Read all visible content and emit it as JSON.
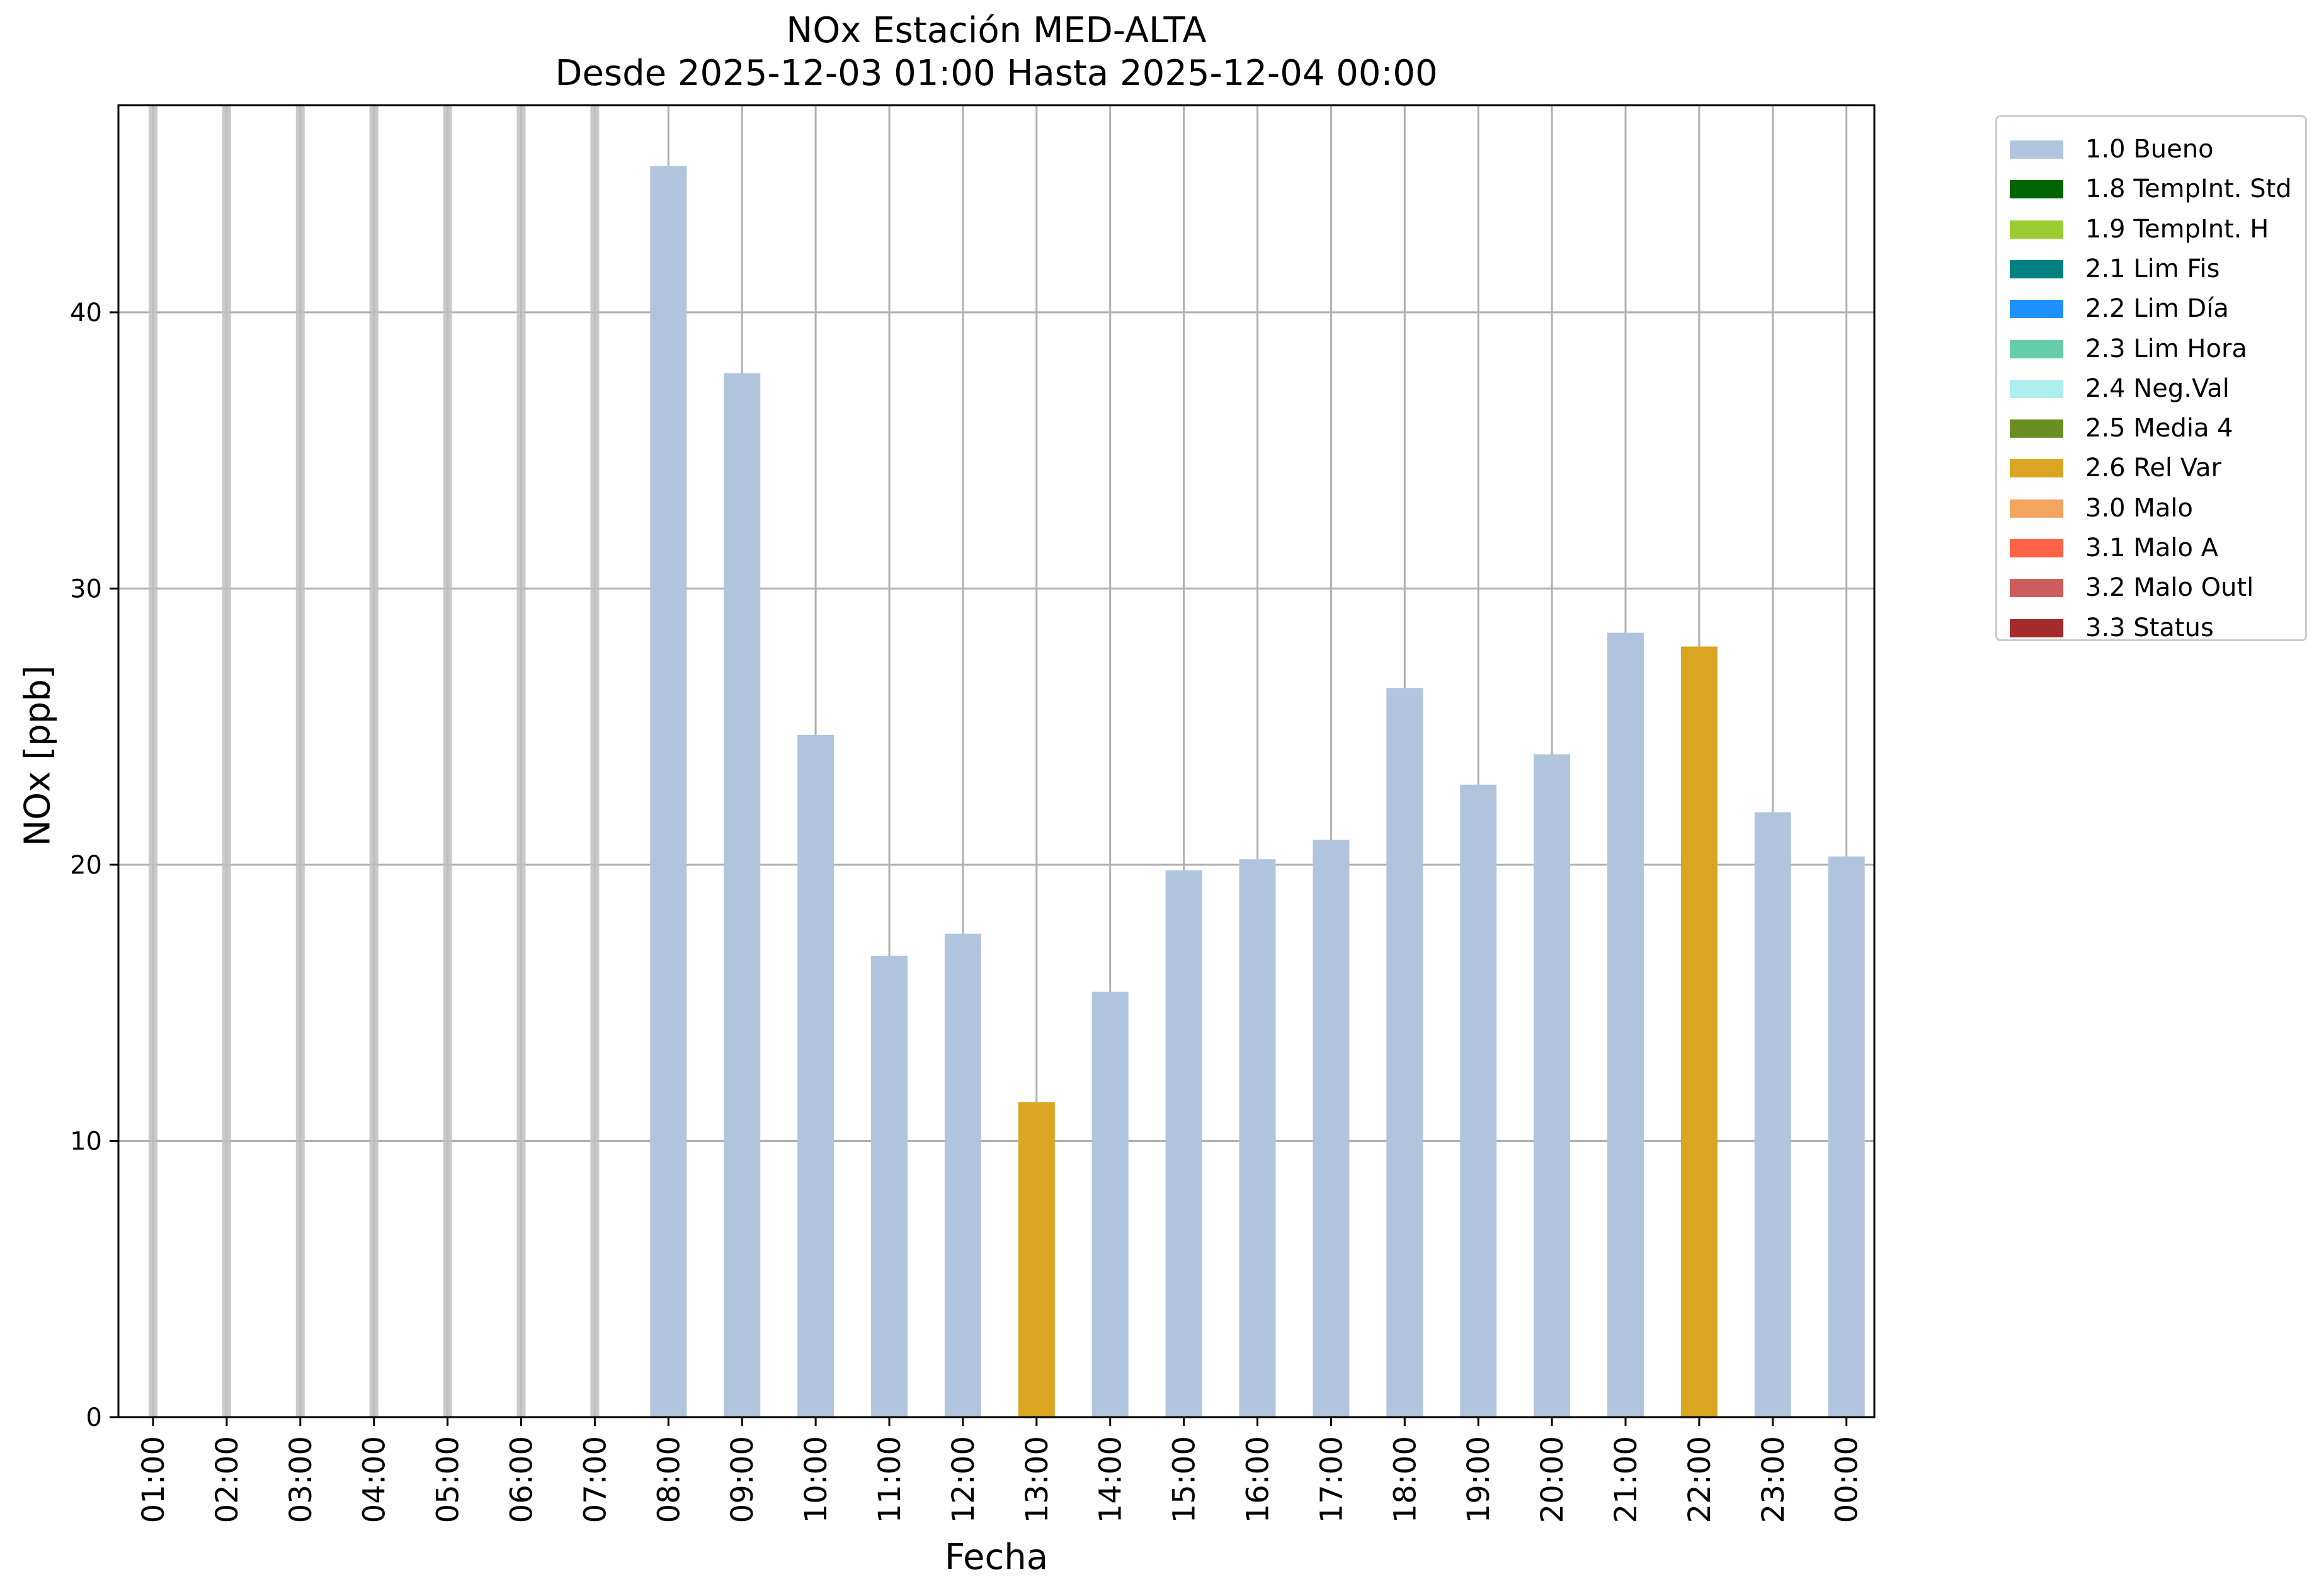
{
  "chart_data": {
    "type": "bar",
    "title": "NOx Estación MED-ALTA",
    "subtitle": "Desde 2025-12-03 01:00 Hasta 2025-12-04 00:00",
    "xlabel": "Fecha",
    "ylabel": "NOx [ppb]",
    "ylim": [
      0,
      47.5
    ],
    "yticks": [
      0,
      10,
      20,
      30,
      40
    ],
    "grid": true,
    "legend_position": "outside top-right",
    "categories": [
      "01:00",
      "02:00",
      "03:00",
      "04:00",
      "05:00",
      "06:00",
      "07:00",
      "08:00",
      "09:00",
      "10:00",
      "11:00",
      "12:00",
      "13:00",
      "14:00",
      "15:00",
      "16:00",
      "17:00",
      "18:00",
      "19:00",
      "20:00",
      "21:00",
      "22:00",
      "23:00",
      "00:00"
    ],
    "values": [
      null,
      null,
      null,
      null,
      null,
      null,
      null,
      45.3,
      37.8,
      24.7,
      16.7,
      17.5,
      11.4,
      15.4,
      19.8,
      20.2,
      20.9,
      26.4,
      22.9,
      24.0,
      28.4,
      27.9,
      21.9,
      20.3
    ],
    "flags": [
      null,
      null,
      null,
      null,
      null,
      null,
      null,
      "1.0 Bueno",
      "1.0 Bueno",
      "1.0 Bueno",
      "1.0 Bueno",
      "1.0 Bueno",
      "2.6 Rel Var",
      "1.0 Bueno",
      "1.0 Bueno",
      "1.0 Bueno",
      "1.0 Bueno",
      "1.0 Bueno",
      "1.0 Bueno",
      "1.0 Bueno",
      "1.0 Bueno",
      "2.6 Rel Var",
      "1.0 Bueno",
      "1.0 Bueno"
    ],
    "legend": [
      {
        "label": "1.0 Bueno",
        "color": "#b0c4de"
      },
      {
        "label": "1.8 TempInt. Std",
        "color": "#006400"
      },
      {
        "label": "1.9 TempInt. H",
        "color": "#9acd32"
      },
      {
        "label": "2.1 Lim Fis",
        "color": "#008080"
      },
      {
        "label": "2.2 Lim Día",
        "color": "#1e90ff"
      },
      {
        "label": "2.3 Lim Hora",
        "color": "#66cdaa"
      },
      {
        "label": "2.4 Neg.Val",
        "color": "#afeeee"
      },
      {
        "label": "2.5 Media 4",
        "color": "#6b8e23"
      },
      {
        "label": "2.6 Rel Var",
        "color": "#daa520"
      },
      {
        "label": "3.0 Malo",
        "color": "#f4a460"
      },
      {
        "label": "3.1 Malo A",
        "color": "#ff6347"
      },
      {
        "label": "3.2 Malo Outl",
        "color": "#cd5c5c"
      },
      {
        "label": "3.3 Status",
        "color": "#a52a2a"
      }
    ],
    "missing_marker_color": "#c0c0c0"
  }
}
